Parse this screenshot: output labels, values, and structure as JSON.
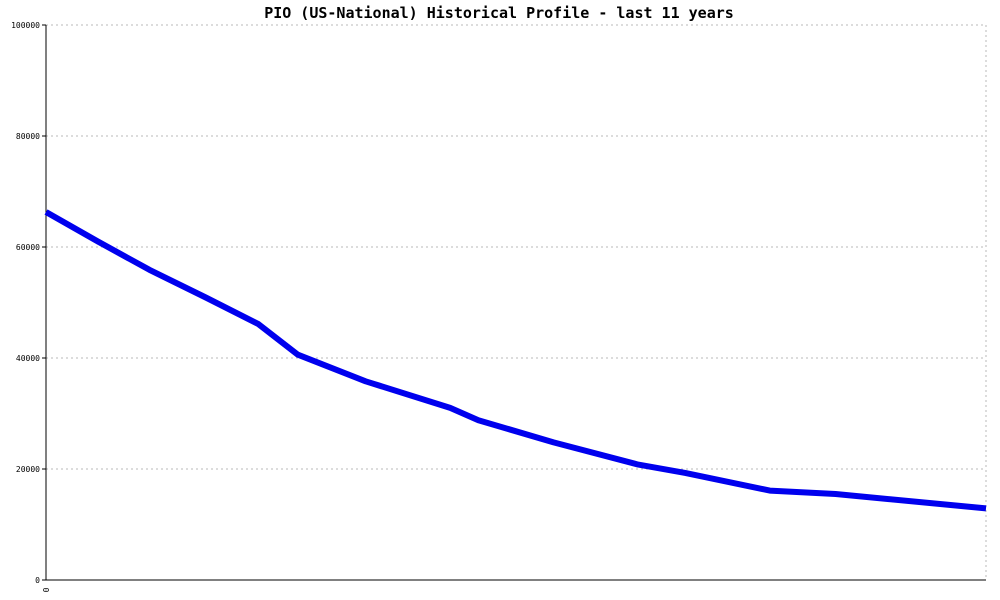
{
  "chart_data": {
    "type": "line",
    "title": "PIO (US-National) Historical Profile - last 11 years",
    "xlabel": "",
    "ylabel": "",
    "ylim": [
      0,
      100000
    ],
    "y_ticks": [
      0,
      20000,
      40000,
      60000,
      80000,
      100000
    ],
    "y_tick_labels": [
      "0",
      "20000",
      "40000",
      "60000",
      "80000",
      "100000"
    ],
    "x_tick_labels": [
      "0"
    ],
    "grid": true,
    "legend": "none",
    "series": [
      {
        "color": "#0000ee",
        "points": [
          [
            0.0,
            66300
          ],
          [
            0.055,
            61000
          ],
          [
            0.11,
            55900
          ],
          [
            0.17,
            50900
          ],
          [
            0.226,
            46100
          ],
          [
            0.268,
            40600
          ],
          [
            0.34,
            35800
          ],
          [
            0.43,
            31000
          ],
          [
            0.46,
            28800
          ],
          [
            0.54,
            24800
          ],
          [
            0.63,
            20800
          ],
          [
            0.68,
            19300
          ],
          [
            0.77,
            16100
          ],
          [
            0.84,
            15500
          ],
          [
            1.0,
            12900
          ]
        ]
      }
    ]
  }
}
